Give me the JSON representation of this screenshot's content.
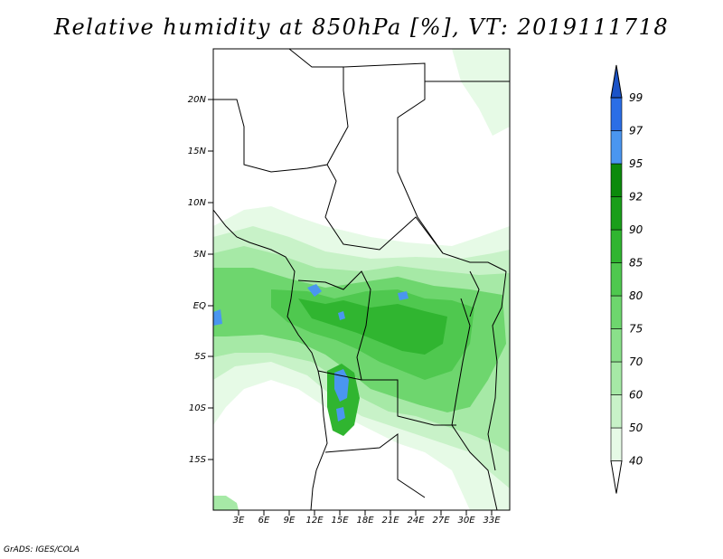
{
  "title": "Relative humidity at 850hPa [%], VT: 2019111718",
  "credit": "GrADS: IGES/COLA",
  "map": {
    "lat_labels": [
      "20N",
      "15N",
      "10N",
      "5N",
      "EQ",
      "5S",
      "10S",
      "15S"
    ],
    "lon_labels": [
      "3E",
      "6E",
      "9E",
      "12E",
      "15E",
      "18E",
      "21E",
      "24E",
      "27E",
      "30E",
      "33E"
    ]
  },
  "colorbar": {
    "levels": [
      "40",
      "50",
      "60",
      "70",
      "75",
      "80",
      "85",
      "90",
      "92",
      "95",
      "97",
      "99"
    ],
    "colors": [
      "#ffffff",
      "#e6fae6",
      "#c8f2c8",
      "#a6e9a6",
      "#8ae08a",
      "#6ed66e",
      "#4fc84f",
      "#30b530",
      "#1a9e1a",
      "#0b8a0b",
      "#4a96f0",
      "#2b6ee6",
      "#1b53c8"
    ]
  }
}
